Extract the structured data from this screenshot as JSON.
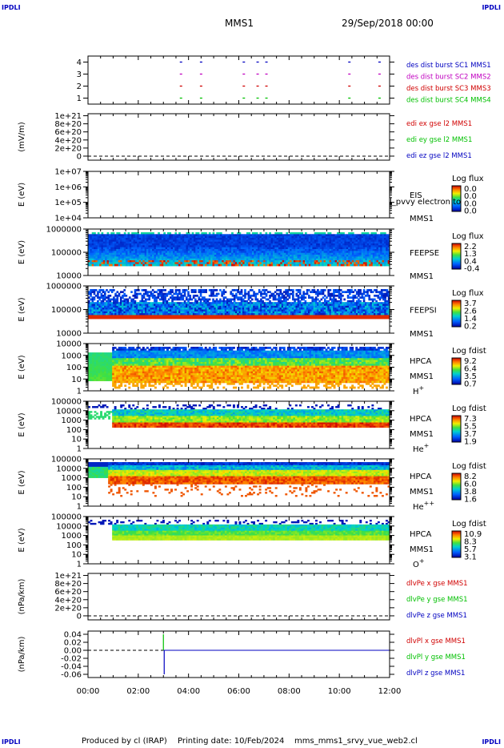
{
  "header": {
    "corner_label": "IPDLI",
    "spacecraft": "MMS1",
    "datetime": "29/Sep/2018 00:00"
  },
  "footer": {
    "producer": "Produced by cl (IRAP)",
    "printing": "Printing date: 10/Feb/2024",
    "filename": "mms_mms1_srvy_vue_web2.cl"
  },
  "chart_data": {
    "type": "multi-panel time series",
    "x_axis": {
      "range_hours": [
        0,
        12
      ],
      "tick_hours": [
        0,
        2,
        4,
        6,
        8,
        10,
        12
      ],
      "tick_labels": [
        "00:00",
        "02:00",
        "04:00",
        "06:00",
        "08:00",
        "10:00",
        "12:00"
      ]
    },
    "panels": [
      {
        "id": "burst",
        "ylabel": "",
        "ytick_labels": [
          "4",
          "3",
          "2",
          "1"
        ],
        "ytick_values": [
          4,
          3,
          2,
          1
        ],
        "ylim": [
          0.5,
          4.5
        ],
        "legend": [
          {
            "text": "des dist burst SC1 MMS1",
            "color": "#0000c0"
          },
          {
            "text": "des dist burst SC2 MMS2",
            "color": "#c000c0"
          },
          {
            "text": "des dist burst SC3 MMS3",
            "color": "#d00000"
          },
          {
            "text": "des dist burst SC4 MMS4",
            "color": "#00c000"
          }
        ],
        "burst_times_hours": [
          3.7,
          4.5,
          6.2,
          6.75,
          7.1,
          10.4,
          11.6
        ]
      },
      {
        "id": "edi",
        "ylabel": "(mV/m)",
        "ytick_labels": [
          "1e+21",
          "8e+20",
          "6e+20",
          "4e+20",
          "2e+20",
          "0"
        ],
        "ytick_values": [
          1e+21,
          8e+20,
          6e+20,
          4e+20,
          2e+20,
          0
        ],
        "ylim": [
          -1e+20,
          1.05e+21
        ],
        "legend": [
          {
            "text": "edi ex gse l2 MMS1",
            "color": "#d00000"
          },
          {
            "text": "edi ey gse l2 MMS1",
            "color": "#00c000"
          },
          {
            "text": "edi ez gse l2 MMS1",
            "color": "#0000c0"
          }
        ]
      },
      {
        "id": "eis",
        "ylabel": "E (eV)",
        "ytick_labels": [
          "1e+07",
          "1e+06",
          "1e+05",
          "1e+04"
        ],
        "ytick_values": [
          10000000.0,
          1000000.0,
          100000.0,
          10000.0
        ],
        "name": "EIS",
        "sub": "MMS1",
        "overlay": "l_pvvy electron to",
        "cbar_title": "Log flux",
        "cbar_labels": [
          "0.0",
          "0.0",
          "0.0",
          "0.0"
        ]
      },
      {
        "id": "feepse",
        "ylabel": "E (eV)",
        "ytick_labels": [
          "1000000",
          "100000",
          "10000"
        ],
        "ytick_values": [
          1000000,
          100000,
          10000
        ],
        "name": "FEEPSE",
        "sub": "MMS1",
        "cbar_title": "Log flux",
        "cbar_labels": [
          "2.2",
          "1.3",
          "0.4",
          "-0.4"
        ]
      },
      {
        "id": "feepsi",
        "ylabel": "E (eV)",
        "ytick_labels": [
          "1000000",
          "100000",
          "10000"
        ],
        "ytick_values": [
          1000000,
          100000,
          10000
        ],
        "name": "FEEPSI",
        "sub": "MMS1",
        "cbar_title": "Log flux",
        "cbar_labels": [
          "3.7",
          "2.6",
          "1.4",
          "0.2"
        ]
      },
      {
        "id": "hpca_h",
        "ylabel": "E (eV)",
        "ytick_labels": [
          "10000",
          "1000",
          "100",
          "10",
          "1"
        ],
        "ytick_values": [
          10000,
          1000,
          100,
          10,
          1
        ],
        "name": "HPCA",
        "sub": "MMS1",
        "species": "H",
        "charge": "+",
        "cbar_title": "Log fdist",
        "cbar_labels": [
          "9.2",
          "6.4",
          "3.5",
          "0.7"
        ]
      },
      {
        "id": "hpca_he1",
        "ylabel": "E (eV)",
        "ytick_labels": [
          "100000",
          "10000",
          "1000",
          "100",
          "10",
          "1"
        ],
        "ytick_values": [
          100000,
          10000,
          1000,
          100,
          10,
          1
        ],
        "name": "HPCA",
        "sub": "MMS1",
        "species": "He",
        "charge": "+",
        "cbar_title": "Log fdist",
        "cbar_labels": [
          "7.3",
          "5.5",
          "3.7",
          "1.9"
        ]
      },
      {
        "id": "hpca_he2",
        "ylabel": "E (eV)",
        "ytick_labels": [
          "100000",
          "10000",
          "1000",
          "100",
          "10",
          "1"
        ],
        "ytick_values": [
          100000,
          10000,
          1000,
          100,
          10,
          1
        ],
        "name": "HPCA",
        "sub": "MMS1",
        "species": "He",
        "charge": "++",
        "cbar_title": "Log fdist",
        "cbar_labels": [
          "8.2",
          "6.0",
          "3.8",
          "1.6"
        ]
      },
      {
        "id": "hpca_o",
        "ylabel": "E (eV)",
        "ytick_labels": [
          "100000",
          "10000",
          "1000",
          "100",
          "10",
          "1"
        ],
        "ytick_values": [
          100000,
          10000,
          1000,
          100,
          10,
          1
        ],
        "name": "HPCA",
        "sub": "MMS1",
        "species": "O",
        "charge": "+",
        "cbar_title": "Log fdist",
        "cbar_labels": [
          "10.9",
          "8.3",
          "5.7",
          "3.1"
        ]
      },
      {
        "id": "divpe",
        "ylabel": "(nPa/km)",
        "ytick_labels": [
          "1e+21",
          "8e+20",
          "6e+20",
          "4e+20",
          "2e+20",
          "0"
        ],
        "ytick_values": [
          1e+21,
          8e+20,
          6e+20,
          4e+20,
          2e+20,
          0
        ],
        "ylim": [
          -1e+20,
          1.05e+21
        ],
        "legend": [
          {
            "text": "dlvPe x gse MMS1",
            "color": "#d00000"
          },
          {
            "text": "dlvPe y gse MMS1",
            "color": "#00c000"
          },
          {
            "text": "dlvPe z gse MMS1",
            "color": "#0000c0"
          }
        ]
      },
      {
        "id": "divpi",
        "ylabel": "(nPa/km)",
        "ytick_labels": [
          "0.04",
          "0.02",
          "0.00",
          "-0.02",
          "-0.04",
          "-0.06"
        ],
        "ytick_values": [
          0.04,
          0.02,
          0.0,
          -0.02,
          -0.04,
          -0.06
        ],
        "ylim": [
          -0.068,
          0.048
        ],
        "legend": [
          {
            "text": "dlvPl x gse MMS1",
            "color": "#d00000"
          },
          {
            "text": "dlvPl y gse MMS1",
            "color": "#00c000"
          },
          {
            "text": "dlvPl z gse MMS1",
            "color": "#0000c0"
          }
        ],
        "spike_time_hours": 3.0,
        "spike_range": [
          -0.06,
          0.04
        ]
      }
    ]
  }
}
